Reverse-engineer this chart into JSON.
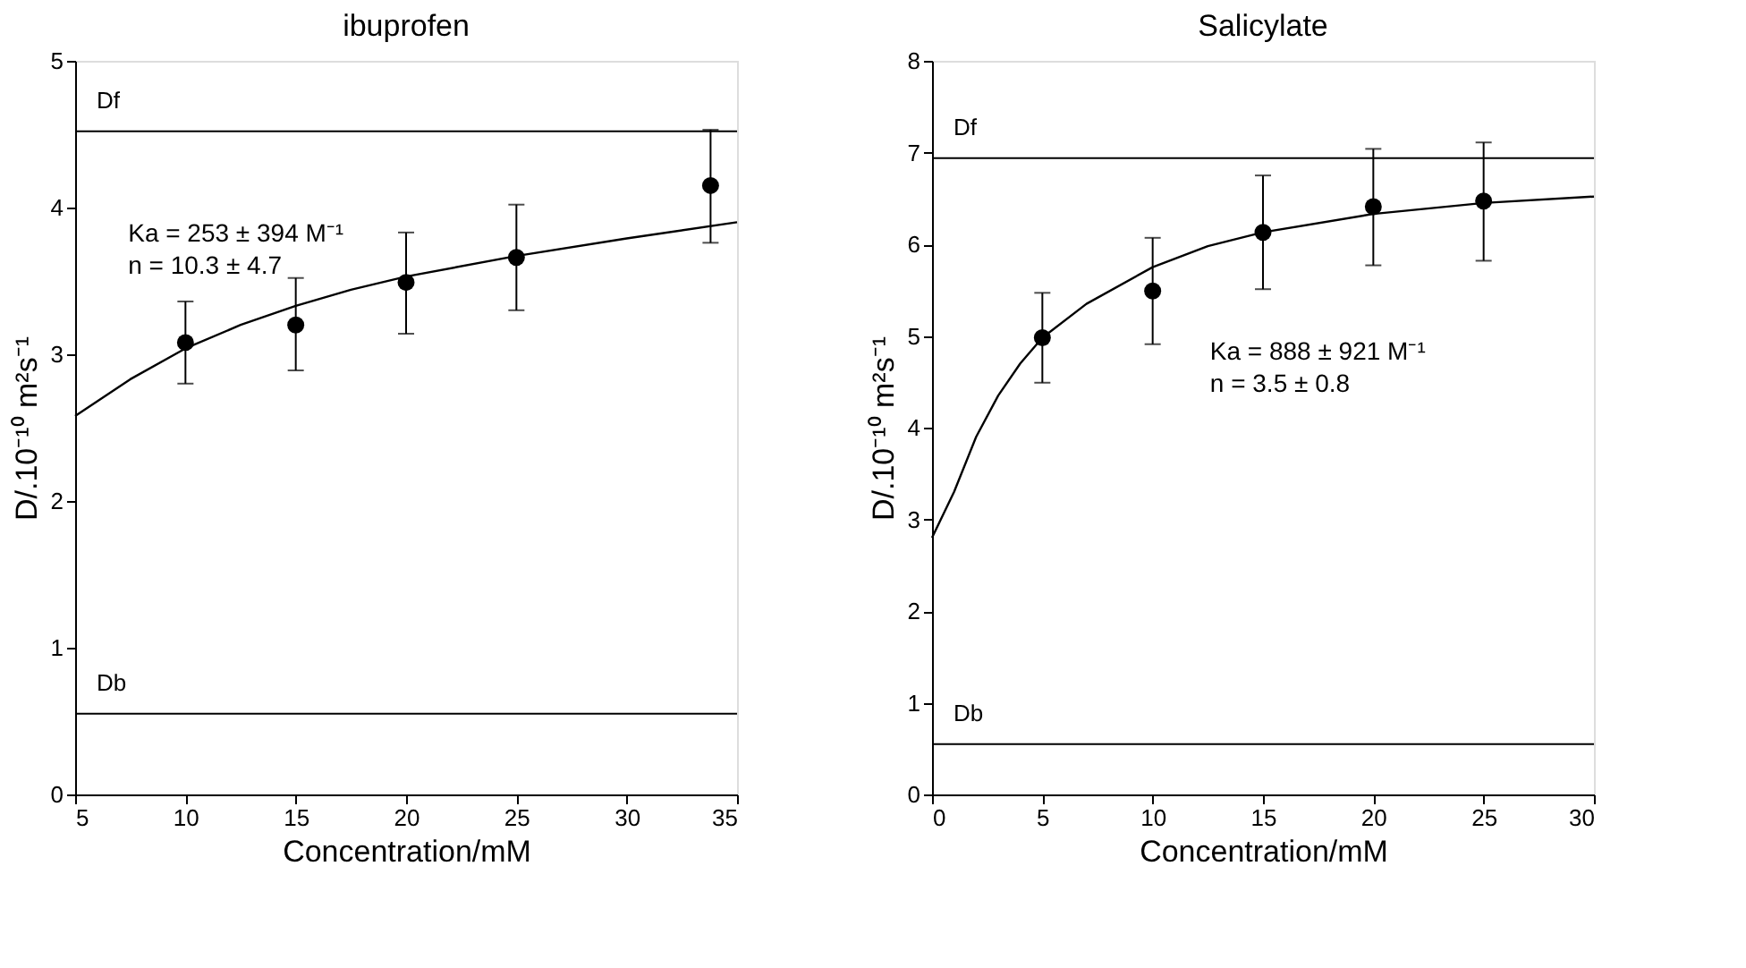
{
  "chart_data": [
    {
      "type": "scatter",
      "title": "ibuprofen",
      "xlabel": "Concentration/mM",
      "ylabel": "D/.10⁻¹⁰ m²s⁻¹",
      "x": [
        10,
        15,
        20,
        25,
        33.8
      ],
      "series": [
        {
          "type": "scatter",
          "color": "#000000",
          "marker": "circle",
          "values": [
            3.08,
            3.2,
            3.49,
            3.66,
            4.15
          ],
          "errors": [
            [
              2.8,
              3.36
            ],
            [
              2.89,
              3.52
            ],
            [
              3.14,
              3.83
            ],
            [
              3.3,
              4.02
            ],
            [
              3.76,
              4.53
            ]
          ]
        },
        {
          "type": "line",
          "color": "#000000",
          "marker": "none",
          "line_style": "solid",
          "x": [
            5,
            7.5,
            10,
            12.5,
            15,
            17.5,
            20,
            25,
            30,
            35
          ],
          "values": [
            2.58,
            2.83,
            3.04,
            3.2,
            3.33,
            3.44,
            3.53,
            3.67,
            3.79,
            3.9
          ]
        }
      ],
      "ref_lines": [
        {
          "axis": "y",
          "value": 4.52,
          "label": "Df",
          "color": "#000000"
        },
        {
          "axis": "y",
          "value": 0.55,
          "label": "Db",
          "color": "#000000"
        }
      ],
      "annotations": [
        "Ka = 253 ± 394 M⁻¹",
        "n = 10.3 ± 4.7"
      ],
      "xlim": [
        5,
        35
      ],
      "xticks": [
        5,
        10,
        15,
        20,
        25,
        30,
        35
      ],
      "ylim": [
        0,
        5
      ],
      "yticks": [
        0,
        1,
        2,
        3,
        4,
        5
      ],
      "grid": false
    },
    {
      "type": "scatter",
      "title": "Salicylate",
      "xlabel": "Concentration/mM",
      "ylabel": "D/.10⁻¹⁰ m²s⁻¹",
      "x": [
        5,
        10,
        15,
        20,
        25
      ],
      "series": [
        {
          "type": "scatter",
          "color": "#000000",
          "marker": "circle",
          "values": [
            4.98,
            5.49,
            6.13,
            6.41,
            6.47
          ],
          "errors": [
            [
              4.49,
              5.47
            ],
            [
              4.91,
              6.07
            ],
            [
              5.51,
              6.75
            ],
            [
              5.77,
              7.04
            ],
            [
              5.82,
              7.11
            ]
          ]
        },
        {
          "type": "line",
          "color": "#000000",
          "marker": "none",
          "line_style": "solid",
          "x": [
            0,
            1,
            2,
            3,
            4,
            5,
            7,
            10,
            12.5,
            15,
            20,
            25,
            30
          ],
          "values": [
            2.8,
            3.3,
            3.9,
            4.35,
            4.7,
            4.98,
            5.35,
            5.75,
            5.98,
            6.13,
            6.33,
            6.45,
            6.52
          ]
        }
      ],
      "ref_lines": [
        {
          "axis": "y",
          "value": 6.94,
          "label": "Df",
          "color": "#000000"
        },
        {
          "axis": "y",
          "value": 0.55,
          "label": "Db",
          "color": "#000000"
        }
      ],
      "annotations": [
        "Ka = 888 ± 921 M⁻¹",
        "n = 3.5 ± 0.8"
      ],
      "xlim": [
        0,
        30
      ],
      "xticks": [
        0,
        5,
        10,
        15,
        20,
        25,
        30
      ],
      "ylim": [
        0,
        8
      ],
      "yticks": [
        0,
        1,
        2,
        3,
        4,
        5,
        6,
        7,
        8
      ],
      "grid": false
    }
  ]
}
